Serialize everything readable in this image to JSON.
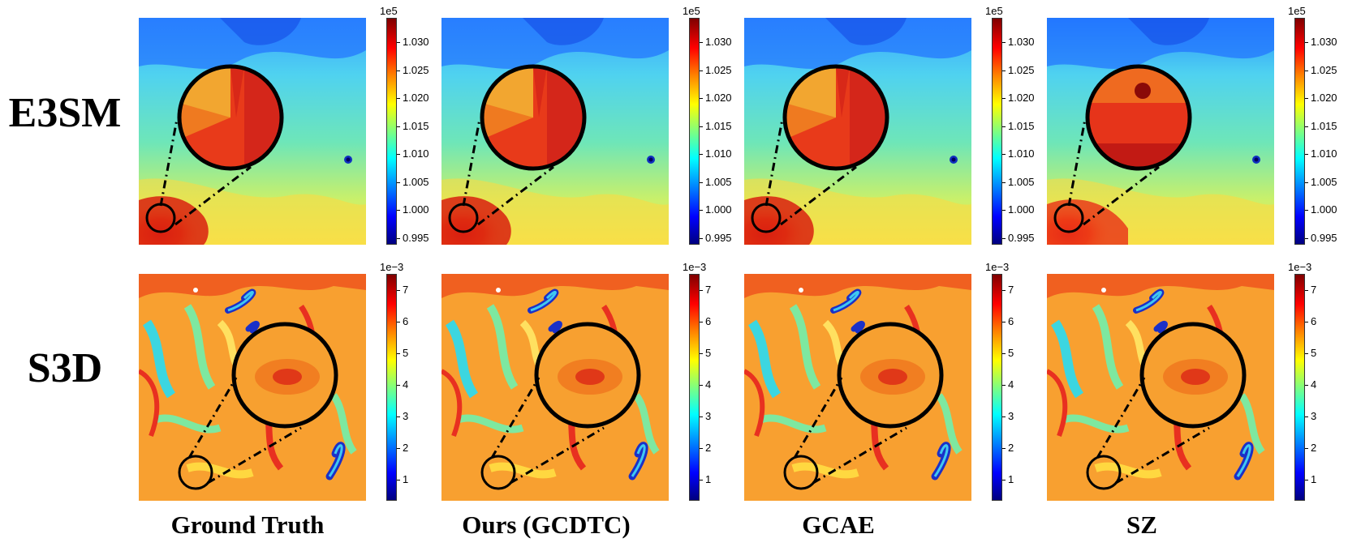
{
  "rows": [
    {
      "id": "e3sm",
      "label": "E3SM"
    },
    {
      "id": "s3d",
      "label": "S3D"
    }
  ],
  "columns": [
    {
      "id": "gt",
      "label": "Ground Truth"
    },
    {
      "id": "ours",
      "label": "Ours (GCDTC)"
    },
    {
      "id": "gcae",
      "label": "GCAE"
    },
    {
      "id": "sz",
      "label": "SZ"
    }
  ],
  "colorbars": {
    "e3sm": {
      "exponent": "1e5",
      "ticks": [
        "1.030",
        "1.025",
        "1.020",
        "1.015",
        "1.010",
        "1.005",
        "1.000",
        "0.995"
      ]
    },
    "s3d": {
      "exponent": "1e−3",
      "ticks": [
        "7",
        "6",
        "5",
        "4",
        "3",
        "2",
        "1"
      ]
    }
  }
}
